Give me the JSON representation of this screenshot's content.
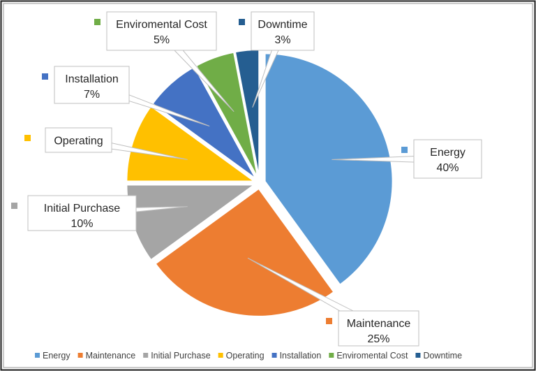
{
  "chart_data": {
    "type": "pie",
    "title": "",
    "categories": [
      "Energy",
      "Maintenance",
      "Initial Purchase",
      "Operating",
      "Installation",
      "Enviromental Cost",
      "Downtime"
    ],
    "values": [
      40,
      25,
      10,
      10,
      7,
      5,
      3
    ],
    "data_labels": [
      "40%",
      "25%",
      "10%",
      "",
      "7%",
      "5%",
      "3%"
    ],
    "colors": [
      "#5b9bd5",
      "#ed7d31",
      "#a5a5a5",
      "#ffc000",
      "#4472c4",
      "#70ad47",
      "#255e91"
    ],
    "legend": [
      "Energy",
      "Maintenance",
      "Initial Purchase",
      "Operating",
      "Installation",
      "Enviromental Cost",
      "Downtime"
    ],
    "legend_position": "bottom",
    "exploded": true
  }
}
